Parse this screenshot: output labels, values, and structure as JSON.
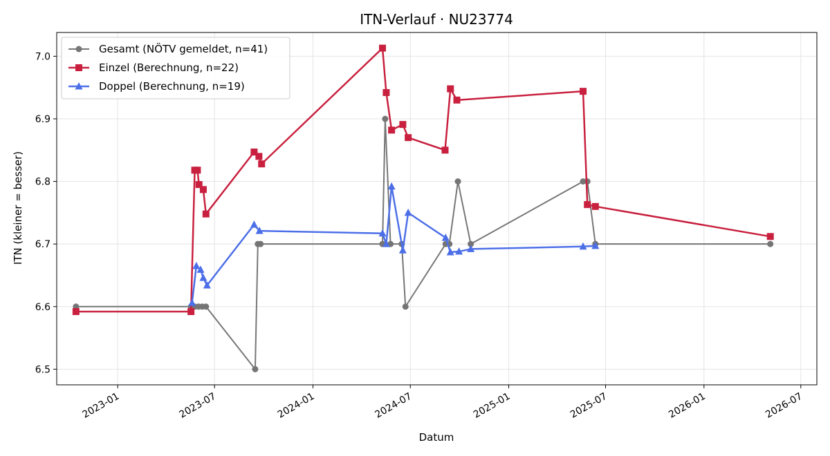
{
  "chart_data": {
    "type": "line",
    "title": "ITN-Verlauf · NU23774",
    "xlabel": "Datum",
    "ylabel": "ITN  (kleiner = besser)",
    "x_type": "date",
    "xlim": [
      "2022-09-09",
      "2026-07-31"
    ],
    "ylim": [
      6.475,
      7.038
    ],
    "x_ticks": [
      "2023-01-01",
      "2023-07-01",
      "2024-01-01",
      "2024-07-01",
      "2025-01-01",
      "2025-07-01",
      "2026-01-01",
      "2026-07-01"
    ],
    "x_tick_labels": [
      "2023-01",
      "2023-07",
      "2024-01",
      "2024-07",
      "2025-01",
      "2025-07",
      "2026-01",
      "2026-07"
    ],
    "y_ticks": [
      6.5,
      6.6,
      6.7,
      6.8,
      6.9,
      7.0
    ],
    "y_tick_labels": [
      "6.5",
      "6.6",
      "6.7",
      "6.8",
      "6.9",
      "7.0"
    ],
    "grid": true,
    "legend_position": "top-left",
    "series": [
      {
        "name": "Gesamt (NÖTV gemeldet, n=41)",
        "color": "#555555",
        "marker": "circle",
        "points": [
          [
            "2022-10-15",
            6.6
          ],
          [
            "2023-05-18",
            6.6
          ],
          [
            "2023-05-25",
            6.6
          ],
          [
            "2023-06-01",
            6.6
          ],
          [
            "2023-06-08",
            6.6
          ],
          [
            "2023-06-15",
            6.6
          ],
          [
            "2023-09-15",
            6.5
          ],
          [
            "2023-09-20",
            6.7
          ],
          [
            "2023-09-25",
            6.7
          ],
          [
            "2024-05-10",
            6.7
          ],
          [
            "2024-05-15",
            6.9
          ],
          [
            "2024-05-25",
            6.7
          ],
          [
            "2024-06-15",
            6.7
          ],
          [
            "2024-06-22",
            6.6
          ],
          [
            "2024-09-05",
            6.7
          ],
          [
            "2024-09-12",
            6.7
          ],
          [
            "2024-09-28",
            6.8
          ],
          [
            "2024-10-22",
            6.7
          ],
          [
            "2025-05-20",
            6.8
          ],
          [
            "2025-05-28",
            6.8
          ],
          [
            "2025-06-12",
            6.7
          ],
          [
            "2026-05-05",
            6.7
          ]
        ]
      },
      {
        "name": "Einzel (Berechnung, n=22)",
        "color": "#c8203e",
        "marker": "square",
        "points": [
          [
            "2022-10-15",
            6.592
          ],
          [
            "2023-05-18",
            6.592
          ],
          [
            "2023-05-25",
            6.818
          ],
          [
            "2023-05-30",
            6.818
          ],
          [
            "2023-06-02",
            6.795
          ],
          [
            "2023-06-10",
            6.787
          ],
          [
            "2023-06-15",
            6.748
          ],
          [
            "2023-09-13",
            6.847
          ],
          [
            "2023-09-22",
            6.84
          ],
          [
            "2023-09-27",
            6.828
          ],
          [
            "2024-05-10",
            7.013
          ],
          [
            "2024-05-17",
            6.942
          ],
          [
            "2024-05-27",
            6.882
          ],
          [
            "2024-06-17",
            6.891
          ],
          [
            "2024-06-27",
            6.87
          ],
          [
            "2024-09-04",
            6.85
          ],
          [
            "2024-09-14",
            6.948
          ],
          [
            "2024-09-26",
            6.93
          ],
          [
            "2025-05-20",
            6.944
          ],
          [
            "2025-05-28",
            6.763
          ],
          [
            "2025-06-12",
            6.76
          ],
          [
            "2026-05-05",
            6.712
          ]
        ]
      },
      {
        "name": "Doppel (Berechnung, n=19)",
        "color": "#4c6fe8",
        "marker": "triangle",
        "points": [
          [
            "2023-05-20",
            6.606
          ],
          [
            "2023-05-28",
            6.665
          ],
          [
            "2023-06-05",
            6.659
          ],
          [
            "2023-06-10",
            6.646
          ],
          [
            "2023-06-17",
            6.634
          ],
          [
            "2023-09-13",
            6.731
          ],
          [
            "2023-09-23",
            6.721
          ],
          [
            "2024-05-10",
            6.717
          ],
          [
            "2024-05-17",
            6.7
          ],
          [
            "2024-05-27",
            6.792
          ],
          [
            "2024-06-17",
            6.69
          ],
          [
            "2024-06-27",
            6.75
          ],
          [
            "2024-09-05",
            6.71
          ],
          [
            "2024-09-14",
            6.687
          ],
          [
            "2024-09-30",
            6.688
          ],
          [
            "2024-10-22",
            6.692
          ],
          [
            "2025-05-20",
            6.696
          ],
          [
            "2025-06-12",
            6.697
          ]
        ]
      }
    ]
  }
}
